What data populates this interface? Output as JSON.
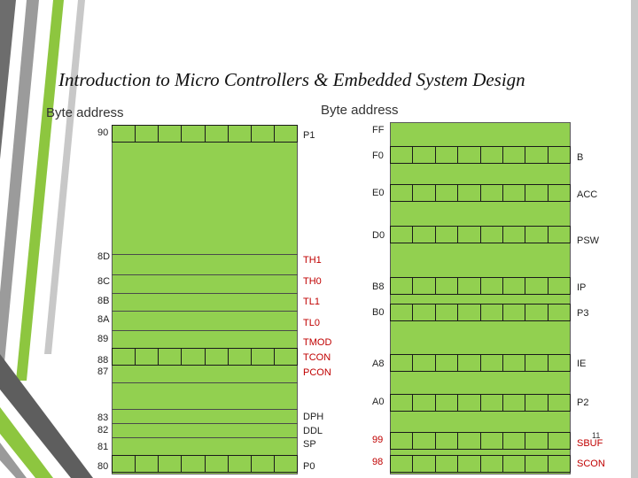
{
  "title": "Introduction to Micro Controllers & Embedded System Design",
  "left_header": "Byte address",
  "right_header": "Byte address",
  "left_addresses": [
    "90",
    "8D",
    "8C",
    "8B",
    "8A",
    "89",
    "88",
    "87",
    "83",
    "82",
    "81",
    "80"
  ],
  "left_registers": [
    "P1",
    "TH1",
    "TH0",
    "TL1",
    "TL0",
    "TMOD",
    "TCON",
    "PCON",
    "DPH",
    "DDL",
    "SP",
    "P0"
  ],
  "right_addresses": [
    "FF",
    "F0",
    "E0",
    "D0",
    "B8",
    "B0",
    "A8",
    "A0",
    "99",
    "98"
  ],
  "right_registers": [
    "B",
    "ACC",
    "PSW",
    "IP",
    "P3",
    "IE",
    "P2",
    "SBUF",
    "SCON"
  ],
  "page_number": "11",
  "colors": {
    "panel": "#92d050",
    "red_text": "#c00000",
    "accent_strip": "#8dc63f",
    "gray_strip": "#7a7a7a"
  }
}
